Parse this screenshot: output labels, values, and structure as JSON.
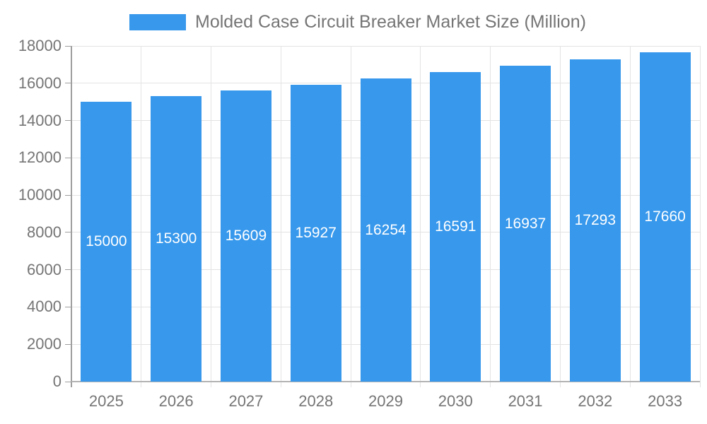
{
  "chart_data": {
    "type": "bar",
    "title": "Molded Case Circuit Breaker Market Size (Million)",
    "legend_entries": [
      "Molded Case Circuit Breaker Market Size (Million)"
    ],
    "categories": [
      "2025",
      "2026",
      "2027",
      "2028",
      "2029",
      "2030",
      "2031",
      "2032",
      "2033"
    ],
    "values": [
      15000,
      15300,
      15609,
      15927,
      16254,
      16591,
      16937,
      17293,
      17660
    ],
    "xlabel": "",
    "ylabel": "",
    "ylim": [
      0,
      18000
    ],
    "yticks": [
      0,
      2000,
      4000,
      6000,
      8000,
      10000,
      12000,
      14000,
      16000,
      18000
    ],
    "grid": true,
    "legend_position": "top",
    "bar_value_labels_visible": true,
    "colors": {
      "bar": "#3798EC",
      "bar_value_label": "#FFFFFF",
      "y_axis_line": "#9E9E9E",
      "x_axis_line": "#B3B3B3",
      "grid_line": "#E3E3E3",
      "axis_text": "#757575",
      "background": "#FFFFFF"
    }
  }
}
